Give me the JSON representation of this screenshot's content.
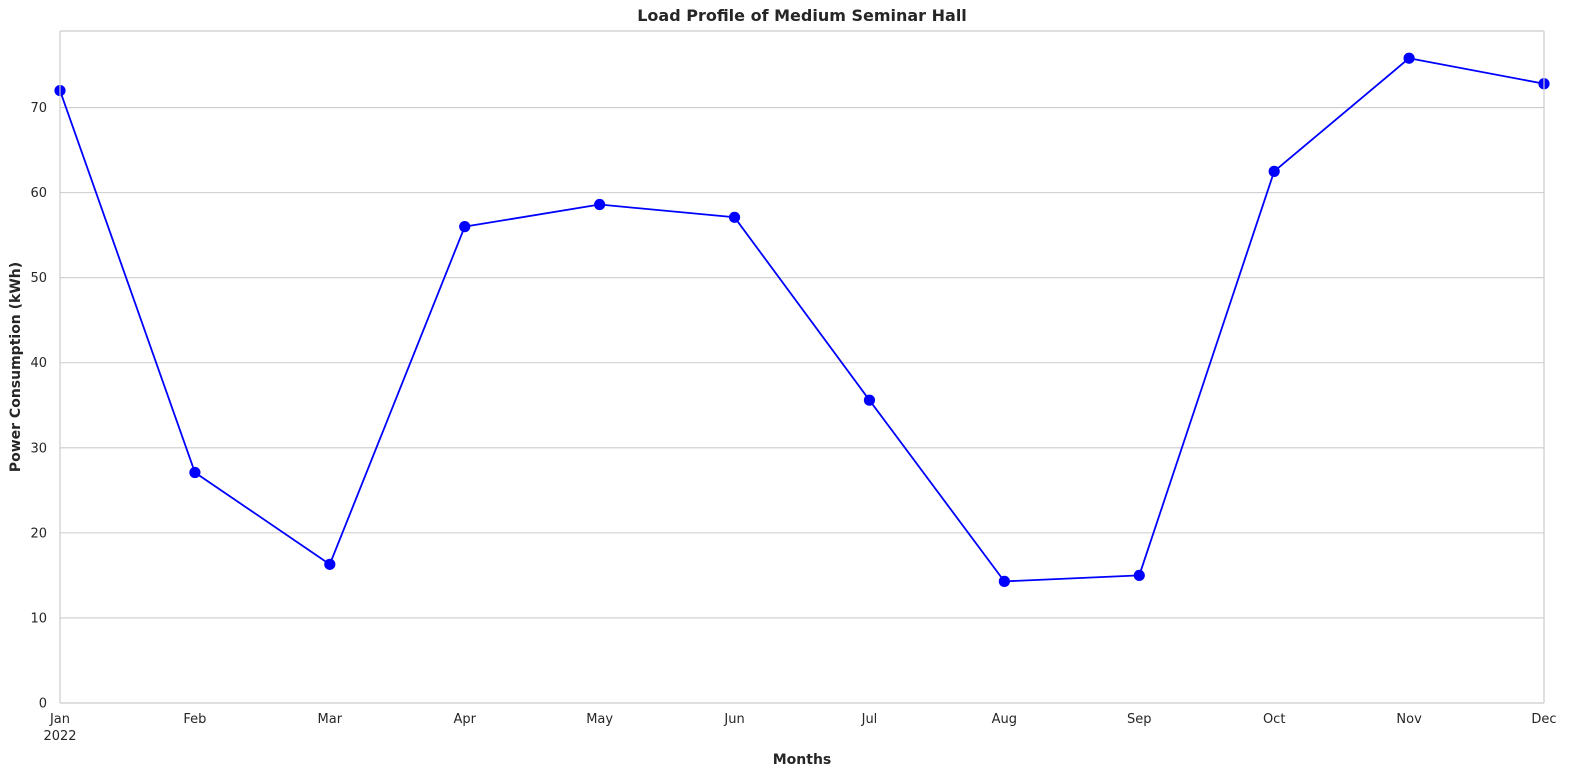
{
  "chart_data": {
    "type": "line",
    "title": "Load Profile of Medium Seminar Hall",
    "xlabel": "Months",
    "ylabel": "Power Consumption (kWh)",
    "categories": [
      "Jan",
      "Feb",
      "Mar",
      "Apr",
      "May",
      "Jun",
      "Jul",
      "Aug",
      "Sep",
      "Oct",
      "Nov",
      "Dec"
    ],
    "x_year_label": "2022",
    "series": [
      {
        "values": [
          72.0,
          27.1,
          16.3,
          56.0,
          58.6,
          57.1,
          35.6,
          14.3,
          15.0,
          62.5,
          75.8,
          72.8
        ],
        "color": "#0000ff",
        "marker": "circle"
      }
    ],
    "yticks": [
      0,
      10,
      20,
      30,
      40,
      50,
      60,
      70
    ],
    "ylim": [
      0,
      79
    ],
    "grid": "horizontal",
    "legend": "none"
  }
}
